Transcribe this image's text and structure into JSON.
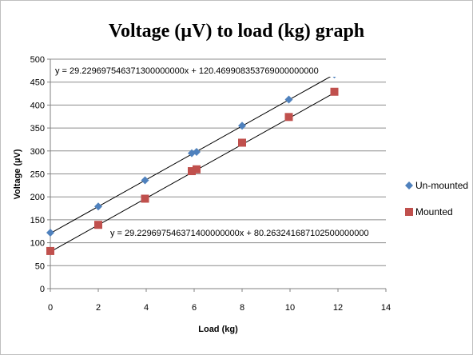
{
  "chart_data": {
    "type": "scatter",
    "title": "Voltage (µV) to load (kg) graph",
    "xlabel": "Load (kg)",
    "ylabel": "Voltage (µV)",
    "xlim": [
      0,
      14
    ],
    "ylim": [
      0,
      500
    ],
    "xticks": [
      0,
      2,
      4,
      6,
      8,
      10,
      12,
      14
    ],
    "yticks": [
      0,
      50,
      100,
      150,
      200,
      250,
      300,
      350,
      400,
      450,
      500
    ],
    "grid": "horizontal",
    "legend": "right",
    "series": [
      {
        "name": "Un-mounted",
        "marker": "diamond",
        "color": "#4f81bd",
        "x": [
          0,
          2,
          3.95,
          5.9,
          6.1,
          8,
          9.95,
          11.85
        ],
        "y": [
          122,
          179,
          236,
          295,
          298,
          355,
          412,
          467
        ],
        "trendline": {
          "slope": 29.2296975463713,
          "intercept": 120.469908353769,
          "equation": "y = 29.229697546371300000000x + 120.469908353769000000000"
        }
      },
      {
        "name": "Mounted",
        "marker": "square",
        "color": "#c0504d",
        "x": [
          0,
          2,
          3.95,
          5.9,
          6.1,
          8,
          9.95,
          11.85
        ],
        "y": [
          82,
          139,
          196,
          256,
          260,
          318,
          374,
          429
        ],
        "trendline": {
          "slope": 29.2296975463714,
          "intercept": 80.2632416871025,
          "equation": "y = 29.229697546371400000000x + 80.263241687102500000000"
        }
      }
    ]
  }
}
